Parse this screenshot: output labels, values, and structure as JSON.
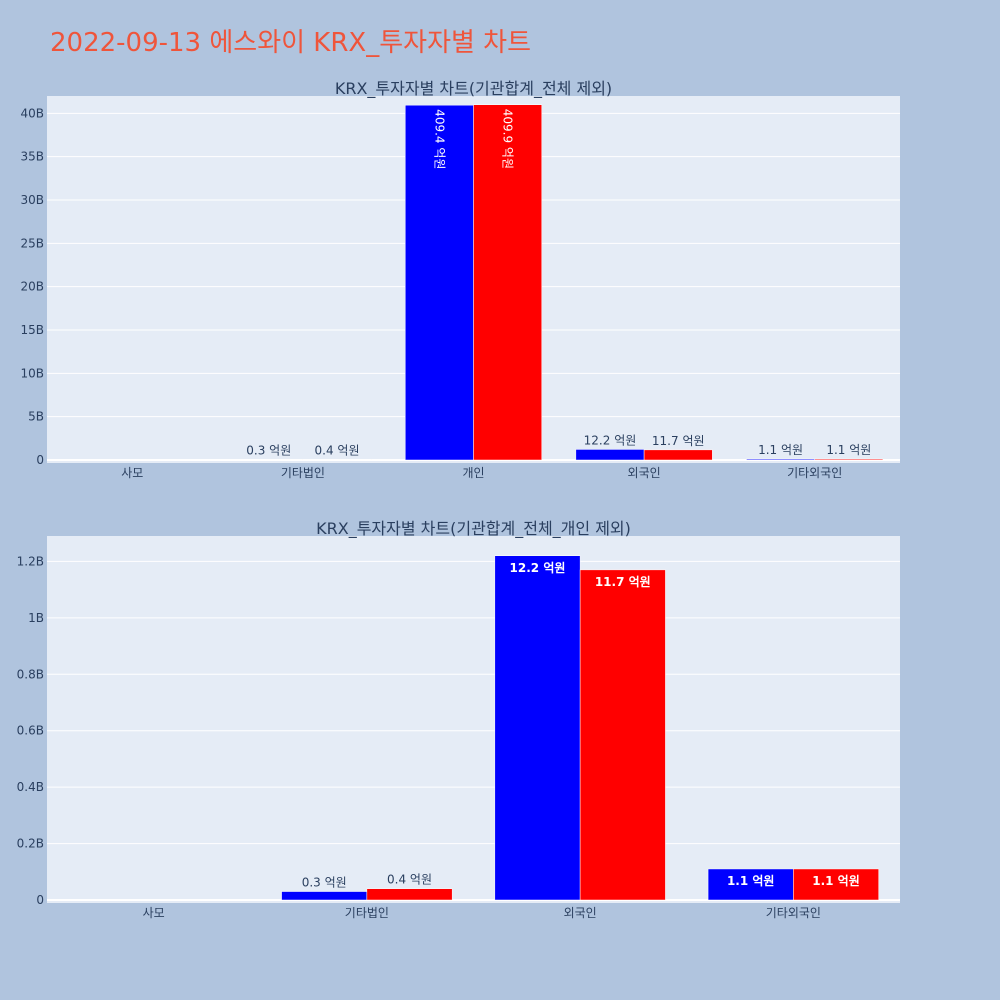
{
  "page_title": "2022-09-13 에스와이 KRX_투자자별 차트",
  "colors": {
    "buy": "#0000ff",
    "sell": "#ff0000",
    "plot_bg": "#e5ecf6",
    "page_bg": "#b0c4de",
    "title": "#ef553b",
    "text": "#2a3f5f"
  },
  "chart_data": [
    {
      "type": "bar",
      "title": "KRX_투자자별 차트(기관합계_전체 제외)",
      "categories": [
        "사모",
        "기타법인",
        "개인",
        "외국인",
        "기타외국인"
      ],
      "series": [
        {
          "values": [
            0,
            30000000,
            40940000000,
            1220000000,
            110000000
          ],
          "labels": [
            "",
            "0.3 억원",
            "409.4 억원",
            "12.2 억원",
            "1.1 억원"
          ]
        },
        {
          "values": [
            0,
            40000000,
            40990000000,
            1170000000,
            110000000
          ],
          "labels": [
            "",
            "0.4 억원",
            "409.9 억원",
            "11.7 억원",
            "1.1 억원"
          ]
        }
      ],
      "ylim": [
        0,
        42000000000
      ],
      "yticks": [
        0,
        5000000000,
        10000000000,
        15000000000,
        20000000000,
        25000000000,
        30000000000,
        35000000000,
        40000000000
      ],
      "ytick_labels": [
        "0",
        "5B",
        "10B",
        "15B",
        "20B",
        "25B",
        "30B",
        "35B",
        "40B"
      ],
      "grid": true,
      "legend": "none"
    },
    {
      "type": "bar",
      "title": "KRX_투자자별 차트(기관합계_전체_개인 제외)",
      "categories": [
        "사모",
        "기타법인",
        "외국인",
        "기타외국인"
      ],
      "series": [
        {
          "values": [
            0,
            30000000,
            1220000000,
            110000000
          ],
          "labels": [
            "",
            "0.3 억원",
            "12.2 억원",
            "1.1 억원"
          ]
        },
        {
          "values": [
            0,
            40000000,
            1170000000,
            110000000
          ],
          "labels": [
            "",
            "0.4 억원",
            "11.7 억원",
            "1.1 억원"
          ]
        }
      ],
      "ylim": [
        0,
        1290000000
      ],
      "yticks": [
        0,
        200000000,
        400000000,
        600000000,
        800000000,
        1000000000,
        1200000000
      ],
      "ytick_labels": [
        "0",
        "0.2B",
        "0.4B",
        "0.6B",
        "0.8B",
        "1B",
        "1.2B"
      ],
      "grid": true,
      "legend": "none"
    }
  ]
}
